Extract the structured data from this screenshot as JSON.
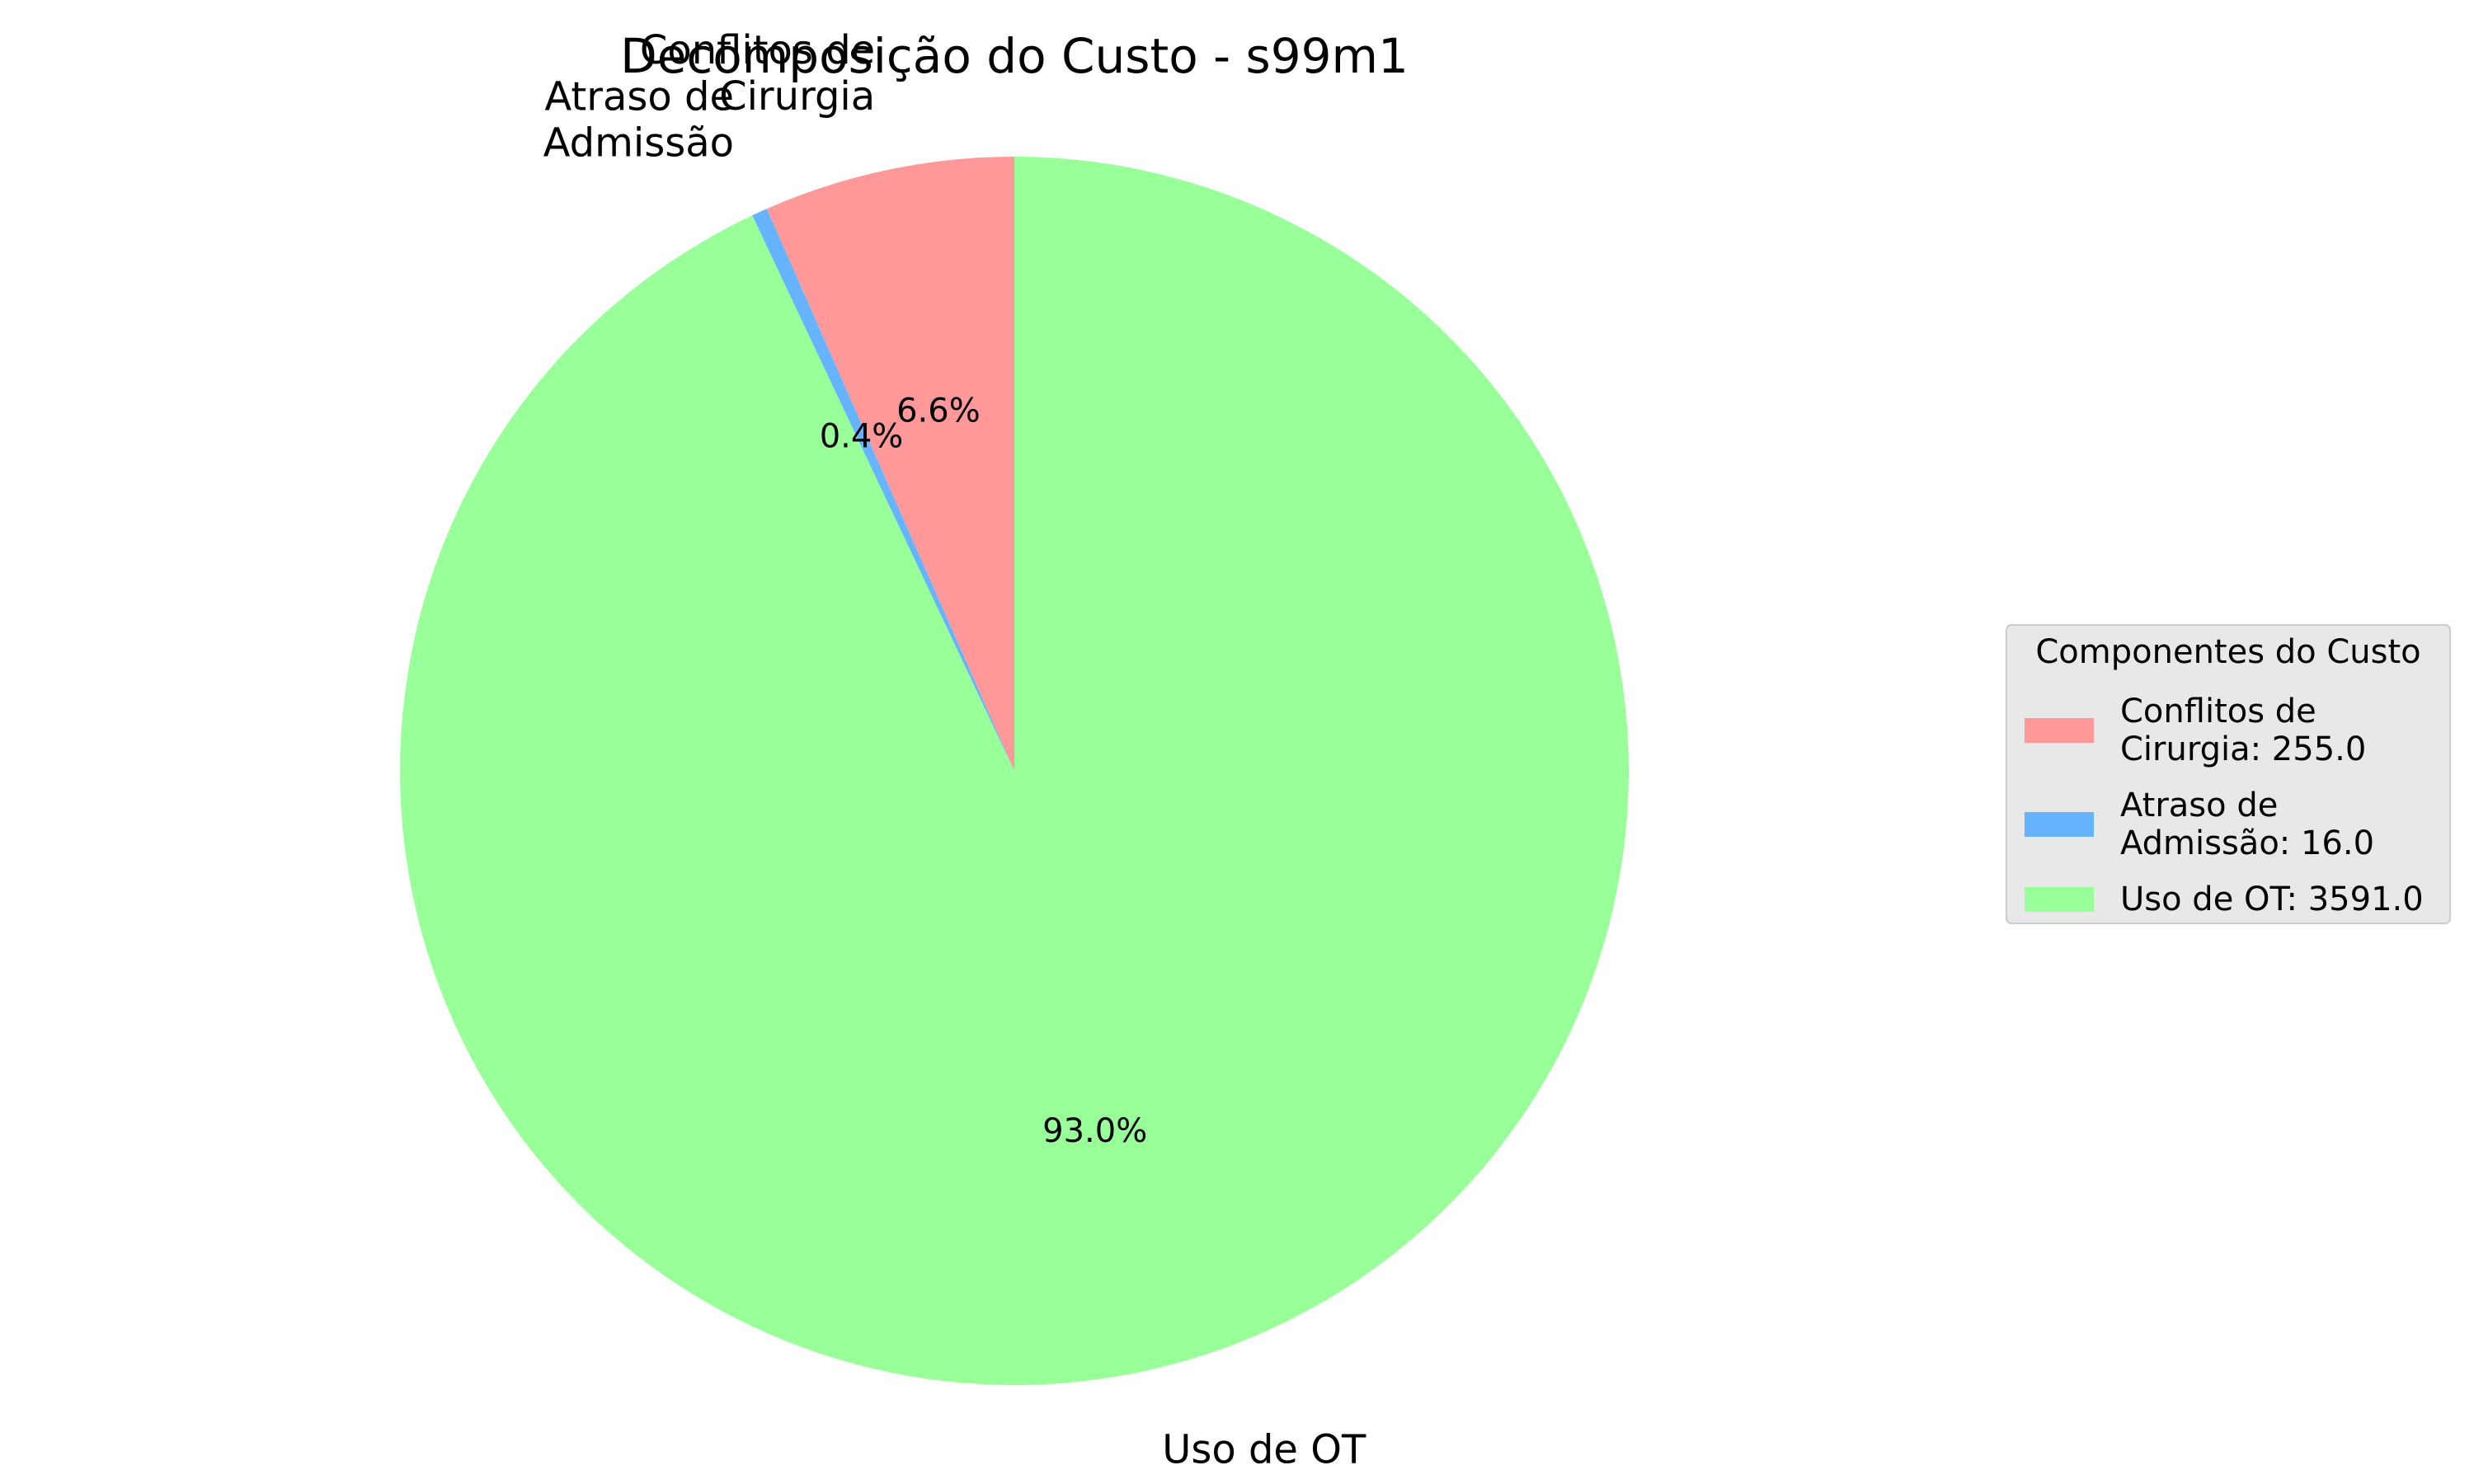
{
  "chart_data": {
    "type": "pie",
    "title": "Decomposição do Custo - s99m1",
    "slices": [
      {
        "label_lines": [
          "Conflitos de",
          "Cirurgia"
        ],
        "value": 255.0,
        "percent_label": "6.6%",
        "color": "#ff9999",
        "legend_lines": [
          "Conflitos de",
          "Cirurgia: 255.0"
        ]
      },
      {
        "label_lines": [
          "Atraso de",
          "Admissão"
        ],
        "value": 16.0,
        "percent_label": "0.4%",
        "color": "#66b3ff",
        "legend_lines": [
          "Atraso de",
          "Admissão: 16.0"
        ]
      },
      {
        "label_lines": [
          "Uso de OT"
        ],
        "value": 3591.0,
        "percent_label": "93.0%",
        "color": "#99ff99",
        "legend_lines": [
          "Uso de OT: 3591.0"
        ]
      }
    ],
    "start_angle_deg": 90,
    "direction": "counterclockwise",
    "legend": {
      "title": "Componentes do Custo",
      "placement": "center-right"
    }
  }
}
